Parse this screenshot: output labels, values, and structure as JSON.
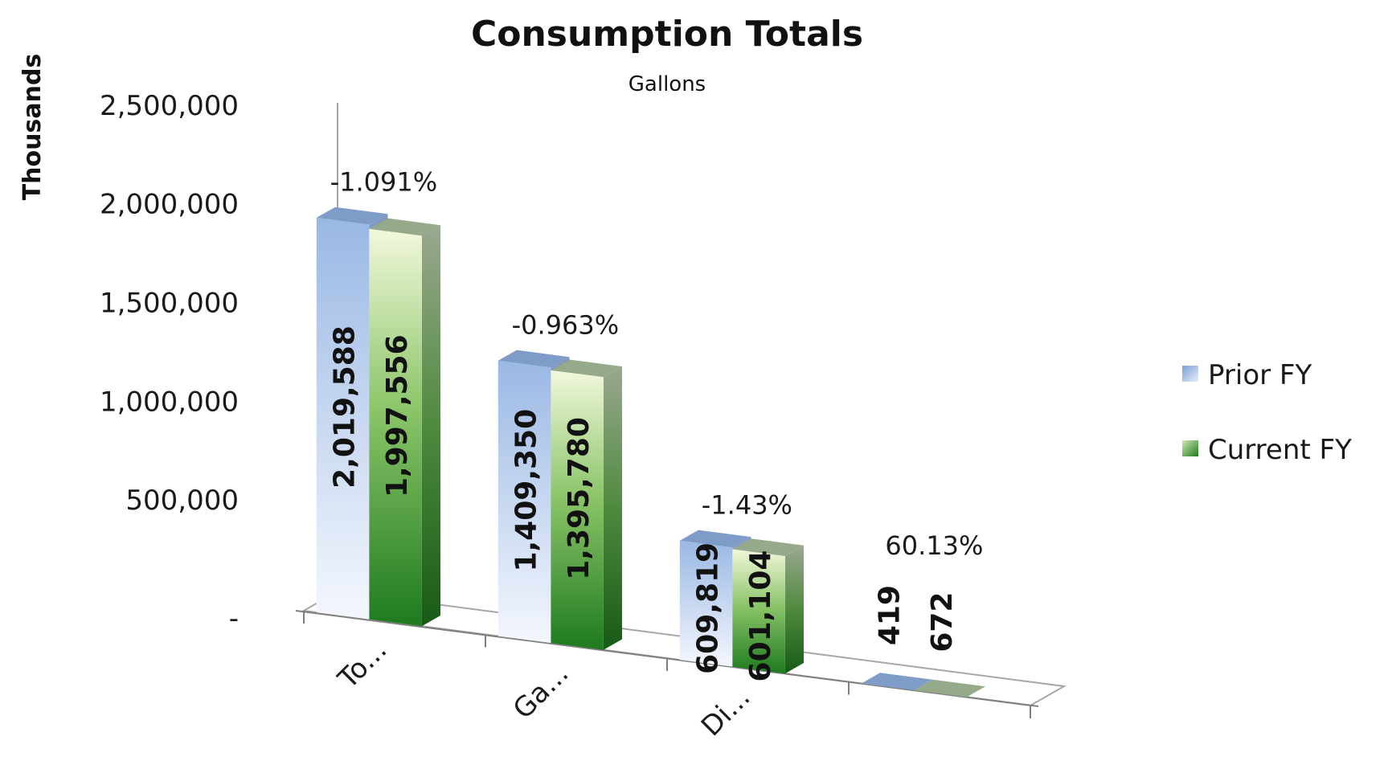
{
  "chart_data": {
    "type": "bar",
    "title": "Consumption Totals",
    "subtitle": "Gallons",
    "ylabel": "Thousands",
    "xlabel": "",
    "ylim": [
      0,
      2500000
    ],
    "yticks": [
      0,
      500000,
      1000000,
      1500000,
      2000000,
      2500000
    ],
    "ytick_labels": [
      "-",
      "500,000",
      "1,000,000",
      "1,500,000",
      "2,000,000",
      "2,500,000"
    ],
    "categories": [
      "To...",
      "Ga...",
      "Di...",
      ""
    ],
    "series": [
      {
        "name": "Prior FY",
        "values": [
          2019588,
          1409350,
          609819,
          419
        ],
        "labels": [
          "2,019,588",
          "1,409,350",
          "609,819",
          "419"
        ],
        "color": "#8fb0de"
      },
      {
        "name": "Current FY",
        "values": [
          1997556,
          1395780,
          601104,
          672
        ],
        "labels": [
          "1,997,556",
          "1,395,780",
          "601,104",
          "672"
        ],
        "color": "#2e8b2e"
      }
    ],
    "annotations": [
      "-1.091%",
      "-0.963%",
      "-1.43%",
      "60.13%"
    ],
    "legend_position": "right",
    "grid": false
  }
}
